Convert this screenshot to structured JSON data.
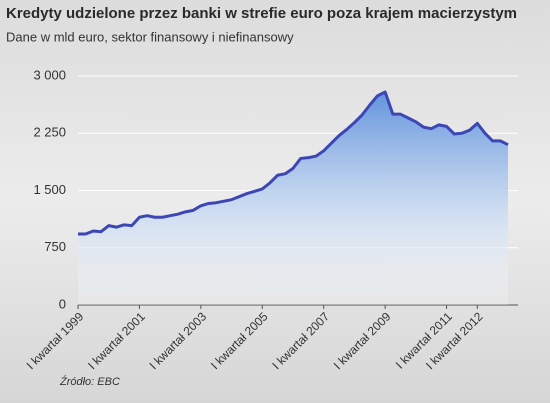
{
  "chart_data": {
    "type": "area",
    "title": "Kredyty udzielone przez banki w strefie euro poza krajem macierzystym",
    "subtitle": "Dane w mld euro, sektor finansowy i niefinansowy",
    "source": "Źródło: EBC",
    "color": "#3c47b5",
    "grid": true,
    "categories": [
      "I kwartał 1999",
      null,
      null,
      null,
      null,
      null,
      null,
      null,
      "I kwartał 2001",
      null,
      null,
      null,
      null,
      null,
      null,
      null,
      "I kwartał 2003",
      null,
      null,
      null,
      null,
      null,
      null,
      null,
      "I kwartał 2005",
      null,
      null,
      null,
      null,
      null,
      null,
      null,
      "I kwartał 2007",
      null,
      null,
      null,
      null,
      null,
      null,
      null,
      "I kwartał 2009",
      null,
      null,
      null,
      null,
      null,
      null,
      null,
      "I kwartał 2011",
      null,
      null,
      null,
      "I kwartał 2012",
      null,
      null,
      null,
      null
    ],
    "values": [
      930,
      930,
      970,
      960,
      1040,
      1020,
      1050,
      1040,
      1150,
      1170,
      1150,
      1150,
      1170,
      1190,
      1220,
      1240,
      1300,
      1330,
      1340,
      1360,
      1380,
      1420,
      1460,
      1490,
      1520,
      1600,
      1700,
      1720,
      1790,
      1920,
      1930,
      1950,
      2020,
      2120,
      2220,
      2300,
      2390,
      2490,
      2620,
      2740,
      2790,
      2500,
      2500,
      2450,
      2400,
      2330,
      2310,
      2360,
      2340,
      2240,
      2250,
      2290,
      2380,
      2250,
      2150,
      2150,
      2100
    ],
    "ylim": [
      0,
      3000
    ],
    "yticks": [
      0,
      750,
      {
        "value": 1500,
        "label": "1 500"
      },
      {
        "value": 2250,
        "label": "2 250"
      },
      {
        "value": 3000,
        "label": "3 000"
      }
    ]
  }
}
